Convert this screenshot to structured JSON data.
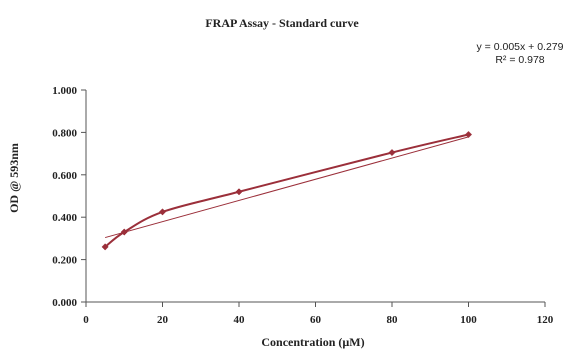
{
  "chart_data": {
    "type": "scatter",
    "title": "FRAP Assay - Standard curve",
    "xlabel": "Concentration (µM)",
    "ylabel": "OD @ 593nm",
    "xlim": [
      0,
      120
    ],
    "ylim": [
      0,
      1.0
    ],
    "x_ticks": [
      0,
      20,
      40,
      60,
      80,
      100,
      120
    ],
    "y_ticks": [
      "0.000",
      "0.200",
      "0.400",
      "0.600",
      "0.800",
      "1.000"
    ],
    "grid": false,
    "series": [
      {
        "x": [
          5,
          10,
          20,
          40,
          80,
          100
        ],
        "y": [
          0.26,
          0.33,
          0.425,
          0.52,
          0.705,
          0.79
        ],
        "color": "#9b2f3a",
        "marker": "diamond",
        "line": "smooth"
      }
    ],
    "trendline": {
      "slope": 0.005,
      "intercept": 0.279,
      "x_range": [
        5,
        100
      ],
      "color": "#9b2f3a",
      "equation": "y = 0.005x + 0.279",
      "r_squared": "R² = 0.978"
    }
  }
}
